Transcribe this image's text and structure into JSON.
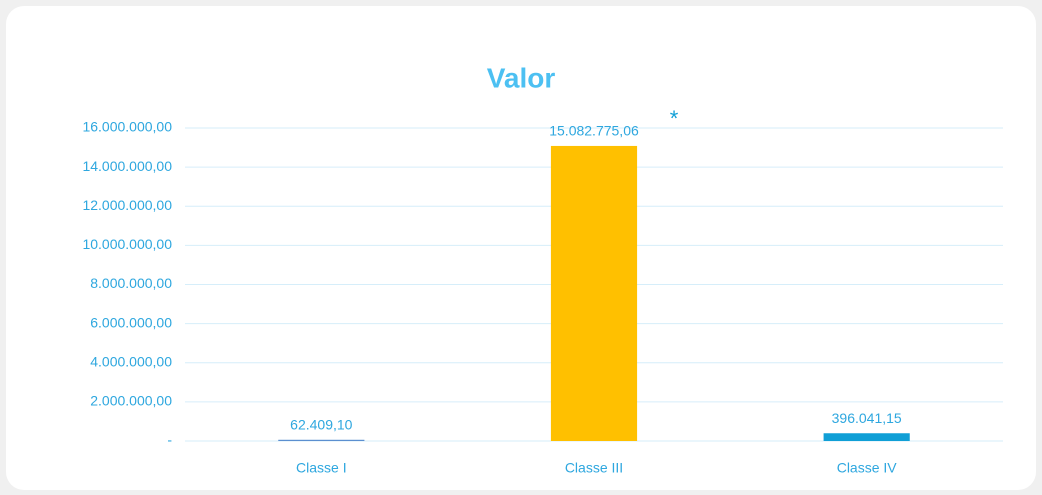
{
  "chart_data": {
    "type": "bar",
    "title": "Valor",
    "categories": [
      "Classe I",
      "Classe III",
      "Classe IV"
    ],
    "values": [
      62409.1,
      15082775.06,
      396041.15
    ],
    "value_labels": [
      "62.409,10",
      "15.082.775,06",
      "396.041,15"
    ],
    "colors": [
      "#5b8fd0",
      "#ffc000",
      "#109fd6"
    ],
    "annotation": "*",
    "ylim": [
      0,
      16000000
    ],
    "yticks": [
      {
        "value": 0,
        "label": "-"
      },
      {
        "value": 2000000,
        "label": "2.000.000,00"
      },
      {
        "value": 4000000,
        "label": "4.000.000,00"
      },
      {
        "value": 6000000,
        "label": "6.000.000,00"
      },
      {
        "value": 8000000,
        "label": "8.000.000,00"
      },
      {
        "value": 10000000,
        "label": "10.000.000,00"
      },
      {
        "value": 12000000,
        "label": "12.000.000,00"
      },
      {
        "value": 14000000,
        "label": "14.000.000,00"
      },
      {
        "value": 16000000,
        "label": "16.000.000,00"
      }
    ],
    "grid": true
  }
}
